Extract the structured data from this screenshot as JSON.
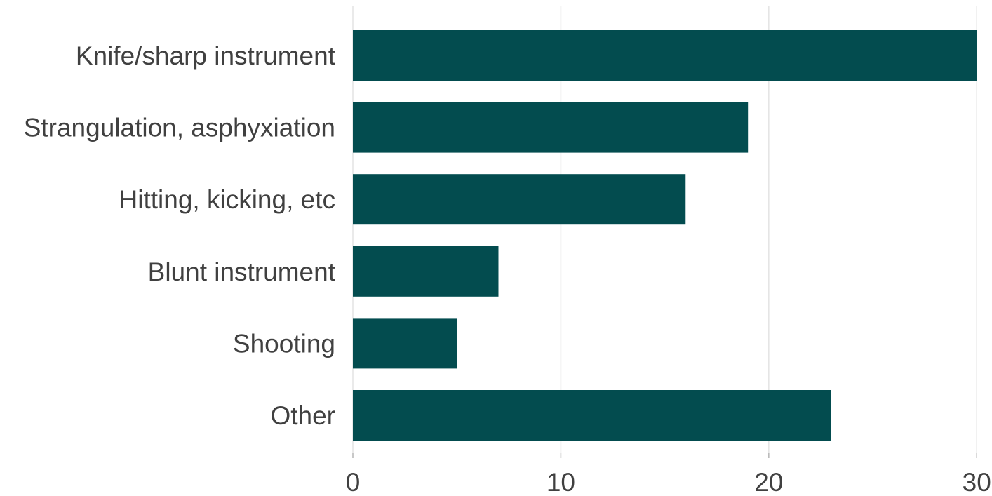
{
  "chart_data": {
    "type": "bar",
    "orientation": "horizontal",
    "categories": [
      "Knife/sharp instrument",
      "Strangulation, asphyxiation",
      "Hitting, kicking, etc",
      "Blunt instrument",
      "Shooting",
      "Other"
    ],
    "values": [
      30,
      19,
      16,
      7,
      5,
      23
    ],
    "xticks": [
      0,
      10,
      20,
      30
    ],
    "xlim": [
      0,
      30.7
    ],
    "grid": true,
    "legend": "none",
    "colors": {
      "bar": "#034c4f",
      "grid": "#e3e3e3",
      "text": "#404040"
    }
  }
}
